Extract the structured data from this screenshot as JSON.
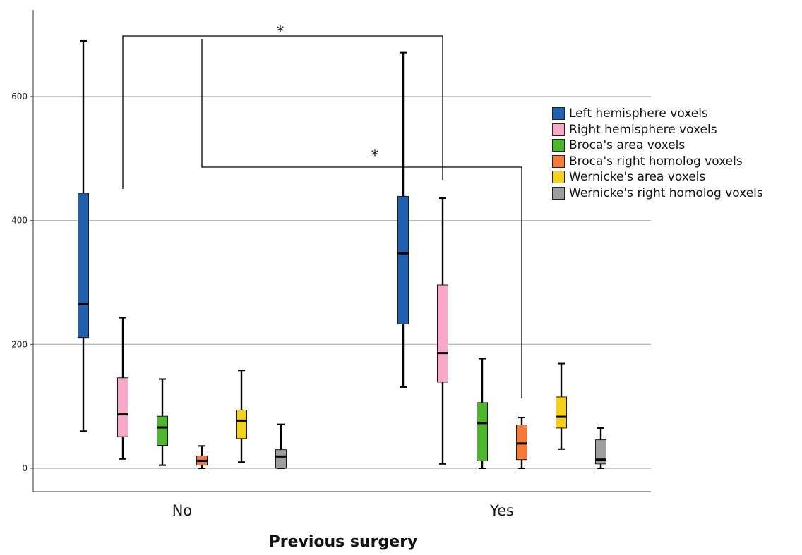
{
  "chart_data": {
    "type": "box",
    "title": "",
    "xlabel": "Previous surgery",
    "ylabel": "",
    "categories": [
      "No",
      "Yes"
    ],
    "ylim": [
      -40,
      740
    ],
    "yticks": [
      0,
      200,
      400,
      600
    ],
    "grid": "horizontal",
    "legend_position": "right",
    "series": [
      {
        "name": "Left hemisphere voxels",
        "color": "#2060AE",
        "boxes": [
          {
            "min": 60,
            "q1": 211,
            "median": 265,
            "q3": 444,
            "max": 690
          },
          {
            "min": 131,
            "q1": 233,
            "median": 347,
            "q3": 439,
            "max": 671
          }
        ]
      },
      {
        "name": "Right hemisphere voxels",
        "color": "#F7A8C8",
        "boxes": [
          {
            "min": 15,
            "q1": 51,
            "median": 87,
            "q3": 146,
            "max": 243
          },
          {
            "min": 7,
            "q1": 139,
            "median": 186,
            "q3": 296,
            "max": 436
          }
        ]
      },
      {
        "name": "Broca's area voxels",
        "color": "#4DB52E",
        "boxes": [
          {
            "min": 5,
            "q1": 37,
            "median": 66,
            "q3": 84,
            "max": 144
          },
          {
            "min": 0,
            "q1": 12,
            "median": 73,
            "q3": 106,
            "max": 177
          }
        ]
      },
      {
        "name": "Broca's right homolog voxels",
        "color": "#F47A3A",
        "boxes": [
          {
            "min": 0,
            "q1": 5,
            "median": 12,
            "q3": 20,
            "max": 36
          },
          {
            "min": 0,
            "q1": 14,
            "median": 40,
            "q3": 70,
            "max": 82
          }
        ]
      },
      {
        "name": "Wernicke's area voxels",
        "color": "#F3D11C",
        "boxes": [
          {
            "min": 10,
            "q1": 48,
            "median": 77,
            "q3": 94,
            "max": 158
          },
          {
            "min": 31,
            "q1": 65,
            "median": 83,
            "q3": 115,
            "max": 169
          }
        ]
      },
      {
        "name": "Wernicke's right homolog voxels",
        "color": "#9E9E9E",
        "boxes": [
          {
            "min": 0,
            "q1": 0,
            "median": 19,
            "q3": 30,
            "max": 71
          },
          {
            "min": 0,
            "q1": 7,
            "median": 14,
            "q3": 46,
            "max": 65
          }
        ]
      }
    ],
    "annotations": [
      {
        "text": "*",
        "from": {
          "series": 1,
          "category": "No"
        },
        "to": {
          "series": 1,
          "category": "Yes"
        }
      },
      {
        "text": "*",
        "from": {
          "series": 3,
          "category": "No"
        },
        "to": {
          "series": 3,
          "category": "Yes"
        }
      }
    ]
  }
}
